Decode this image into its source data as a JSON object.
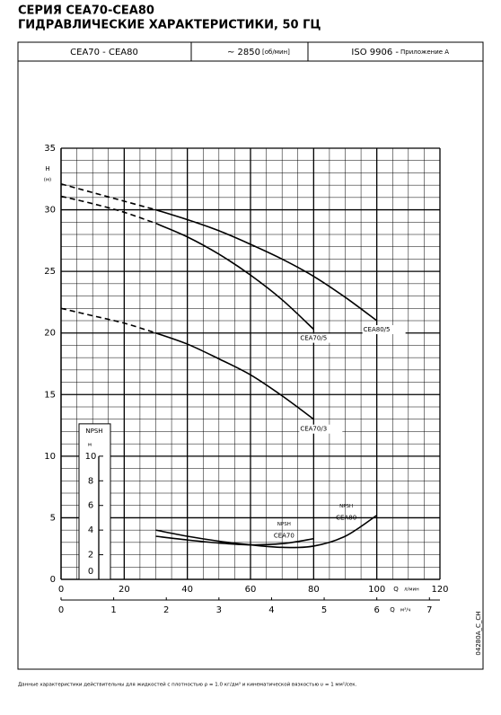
{
  "header": {
    "title_line1": "СЕРИЯ CEA70-CEA80",
    "title_line2": "ГИДРАВЛИЧЕСКИЕ ХАРАКТЕРИСТИКИ, 50 ГЦ",
    "model": "CEA70 - CEA80",
    "speed": "~ 2850",
    "speed_unit": "[об/мин]",
    "standard": "ISO 9906 -",
    "annex": "Приложение А"
  },
  "chart_data": {
    "type": "line",
    "y_label": "H",
    "y_unit": "(м)",
    "x_label": "Q",
    "x_unit": "л/мин",
    "x2_label": "Q",
    "x2_unit": "м³/ч",
    "y2_label": "NPSH",
    "y2_unit": "м",
    "x": [
      0,
      10,
      20,
      30,
      40,
      50,
      60,
      70,
      80,
      90,
      100
    ],
    "xlim": [
      0,
      120
    ],
    "xticks": [
      0,
      20,
      40,
      60,
      80,
      100,
      120
    ],
    "x2lim": [
      0,
      7.2
    ],
    "x2ticks": [
      0,
      1,
      2,
      3,
      4,
      5,
      6,
      7
    ],
    "ylim": [
      0,
      35
    ],
    "yticks": [
      0,
      5,
      10,
      15,
      20,
      25,
      30,
      35
    ],
    "y2lim": [
      0,
      10
    ],
    "y2ticks": [
      0,
      2,
      4,
      6,
      8,
      10
    ],
    "grid": true,
    "series": [
      {
        "name": "CEA80/5",
        "color": "#000000",
        "extrapolated_values": [
          32.1,
          31.4,
          30.7,
          30.0,
          null,
          null,
          null,
          null,
          null,
          null,
          null
        ],
        "values": [
          null,
          null,
          null,
          30.0,
          29.2,
          28.3,
          27.2,
          26.0,
          24.6,
          22.9,
          21.0
        ]
      },
      {
        "name": "CEA70/5",
        "color": "#000000",
        "extrapolated_values": [
          31.1,
          30.5,
          29.8,
          28.9,
          null,
          null,
          null,
          null,
          null,
          null,
          null
        ],
        "values": [
          null,
          null,
          null,
          28.9,
          27.8,
          26.4,
          24.7,
          22.7,
          20.3,
          null,
          null
        ]
      },
      {
        "name": "CEA70/3",
        "color": "#000000",
        "extrapolated_values": [
          22.0,
          21.4,
          20.8,
          20.0,
          null,
          null,
          null,
          null,
          null,
          null,
          null
        ],
        "values": [
          null,
          null,
          null,
          20.0,
          19.1,
          17.9,
          16.6,
          14.9,
          13.0,
          null,
          null
        ]
      },
      {
        "name": "CEA70",
        "label_prefix": "NPSH",
        "axis": "y2",
        "color": "#000000",
        "values": [
          null,
          null,
          null,
          3.5,
          3.2,
          2.95,
          2.8,
          2.9,
          3.3,
          null,
          null
        ]
      },
      {
        "name": "CEA80",
        "label_prefix": "NPSH",
        "axis": "y2",
        "color": "#000000",
        "values": [
          null,
          null,
          null,
          4.0,
          3.5,
          3.1,
          2.8,
          2.6,
          2.7,
          3.5,
          5.2
        ]
      }
    ]
  },
  "drawing_code": "04280A_C_CH",
  "footnote": "Данные характеристики действительны для жидкостей с  плотностью ρ = 1.0 кг/дм³ и кинематической вязкостью υ = 1 мм²/сек."
}
